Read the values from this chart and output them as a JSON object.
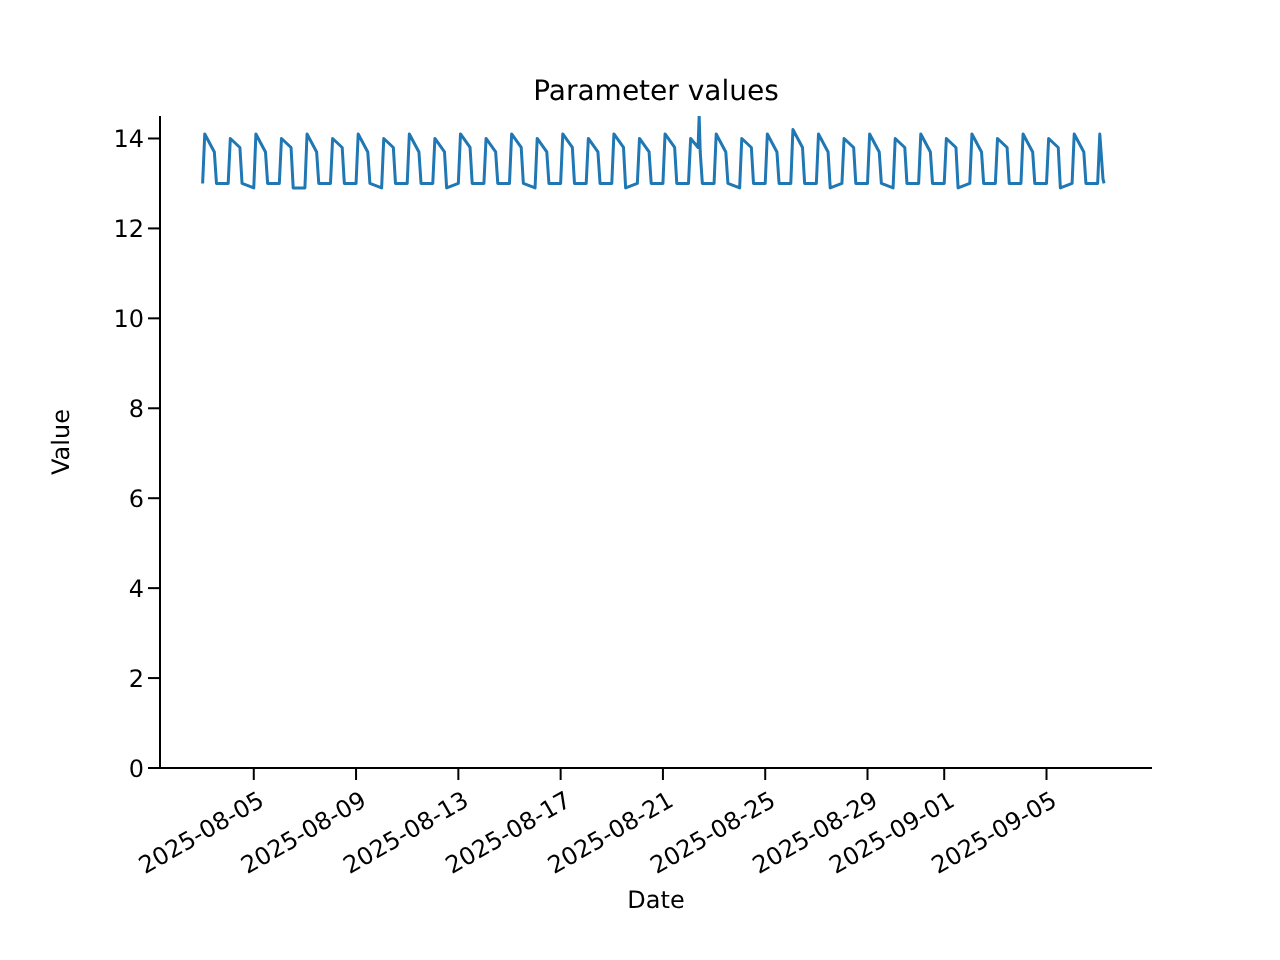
{
  "chart_data": {
    "type": "line",
    "title": "Parameter values",
    "xlabel": "Date",
    "ylabel": "Value",
    "x": [
      "2025-08-03T00:00",
      "2025-08-03T02:00",
      "2025-08-03T11:00",
      "2025-08-03T13:00",
      "2025-08-04T00:00",
      "2025-08-04T02:00",
      "2025-08-04T11:00",
      "2025-08-04T13:00",
      "2025-08-05T00:00",
      "2025-08-05T02:00",
      "2025-08-05T11:00",
      "2025-08-05T13:00",
      "2025-08-06T00:00",
      "2025-08-06T02:00",
      "2025-08-06T11:00",
      "2025-08-06T13:00",
      "2025-08-07T00:00",
      "2025-08-07T02:00",
      "2025-08-07T11:00",
      "2025-08-07T13:00",
      "2025-08-08T00:00",
      "2025-08-08T02:00",
      "2025-08-08T11:00",
      "2025-08-08T13:00",
      "2025-08-09T00:00",
      "2025-08-09T02:00",
      "2025-08-09T11:00",
      "2025-08-09T13:00",
      "2025-08-10T00:00",
      "2025-08-10T02:00",
      "2025-08-10T11:00",
      "2025-08-10T13:00",
      "2025-08-11T00:00",
      "2025-08-11T02:00",
      "2025-08-11T11:00",
      "2025-08-11T13:00",
      "2025-08-12T00:00",
      "2025-08-12T02:00",
      "2025-08-12T11:00",
      "2025-08-12T13:00",
      "2025-08-13T00:00",
      "2025-08-13T02:00",
      "2025-08-13T11:00",
      "2025-08-13T13:00",
      "2025-08-14T00:00",
      "2025-08-14T02:00",
      "2025-08-14T11:00",
      "2025-08-14T13:00",
      "2025-08-15T00:00",
      "2025-08-15T02:00",
      "2025-08-15T11:00",
      "2025-08-15T13:00",
      "2025-08-16T00:00",
      "2025-08-16T02:00",
      "2025-08-16T11:00",
      "2025-08-16T13:00",
      "2025-08-17T00:00",
      "2025-08-17T02:00",
      "2025-08-17T11:00",
      "2025-08-17T13:00",
      "2025-08-18T00:00",
      "2025-08-18T02:00",
      "2025-08-18T11:00",
      "2025-08-18T13:00",
      "2025-08-19T00:00",
      "2025-08-19T02:00",
      "2025-08-19T11:00",
      "2025-08-19T13:00",
      "2025-08-20T00:00",
      "2025-08-20T02:00",
      "2025-08-20T11:00",
      "2025-08-20T13:00",
      "2025-08-21T00:00",
      "2025-08-21T02:00",
      "2025-08-21T11:00",
      "2025-08-21T13:00",
      "2025-08-22T00:00",
      "2025-08-22T02:00",
      "2025-08-22T09:00",
      "2025-08-22T10:00",
      "2025-08-22T11:00",
      "2025-08-22T13:00",
      "2025-08-23T00:00",
      "2025-08-23T02:00",
      "2025-08-23T11:00",
      "2025-08-23T13:00",
      "2025-08-24T00:00",
      "2025-08-24T02:00",
      "2025-08-24T11:00",
      "2025-08-24T13:00",
      "2025-08-25T00:00",
      "2025-08-25T02:00",
      "2025-08-25T11:00",
      "2025-08-25T13:00",
      "2025-08-26T00:00",
      "2025-08-26T02:00",
      "2025-08-26T11:00",
      "2025-08-26T13:00",
      "2025-08-27T00:00",
      "2025-08-27T02:00",
      "2025-08-27T11:00",
      "2025-08-27T13:00",
      "2025-08-28T00:00",
      "2025-08-28T02:00",
      "2025-08-28T11:00",
      "2025-08-28T13:00",
      "2025-08-29T00:00",
      "2025-08-29T02:00",
      "2025-08-29T11:00",
      "2025-08-29T13:00",
      "2025-08-30T00:00",
      "2025-08-30T02:00",
      "2025-08-30T11:00",
      "2025-08-30T13:00",
      "2025-08-31T00:00",
      "2025-08-31T02:00",
      "2025-08-31T11:00",
      "2025-08-31T13:00",
      "2025-09-01T00:00",
      "2025-09-01T02:00",
      "2025-09-01T11:00",
      "2025-09-01T13:00",
      "2025-09-02T00:00",
      "2025-09-02T02:00",
      "2025-09-02T11:00",
      "2025-09-02T13:00",
      "2025-09-03T00:00",
      "2025-09-03T02:00",
      "2025-09-03T11:00",
      "2025-09-03T13:00",
      "2025-09-04T00:00",
      "2025-09-04T02:00",
      "2025-09-04T11:00",
      "2025-09-04T13:00",
      "2025-09-05T00:00",
      "2025-09-05T02:00",
      "2025-09-05T11:00",
      "2025-09-05T13:00",
      "2025-09-06T00:00",
      "2025-09-06T02:00",
      "2025-09-06T11:00",
      "2025-09-06T13:00",
      "2025-09-07T00:00",
      "2025-09-07T02:00",
      "2025-09-07T05:00",
      "2025-09-07T06:00"
    ],
    "series": [
      {
        "color": "#1f77b4",
        "values": [
          13.0,
          14.1,
          13.7,
          13.0,
          13.0,
          14.0,
          13.8,
          13.0,
          12.9,
          14.1,
          13.7,
          13.0,
          13.0,
          14.0,
          13.8,
          12.9,
          12.9,
          14.1,
          13.7,
          13.0,
          13.0,
          14.0,
          13.8,
          13.0,
          13.0,
          14.1,
          13.7,
          13.0,
          12.9,
          14.0,
          13.8,
          13.0,
          13.0,
          14.1,
          13.7,
          13.0,
          13.0,
          14.0,
          13.7,
          12.9,
          13.0,
          14.1,
          13.8,
          13.0,
          13.0,
          14.0,
          13.7,
          13.0,
          13.0,
          14.1,
          13.8,
          13.0,
          12.9,
          14.0,
          13.7,
          13.0,
          13.0,
          14.1,
          13.8,
          13.0,
          13.0,
          14.0,
          13.7,
          13.0,
          13.0,
          14.1,
          13.8,
          12.9,
          13.0,
          14.0,
          13.7,
          13.0,
          13.0,
          14.1,
          13.8,
          13.0,
          13.0,
          14.0,
          13.8,
          14.5,
          13.7,
          13.0,
          13.0,
          14.1,
          13.7,
          13.0,
          12.9,
          14.0,
          13.8,
          13.0,
          13.0,
          14.1,
          13.7,
          13.0,
          13.0,
          14.2,
          13.8,
          13.0,
          13.0,
          14.1,
          13.7,
          12.9,
          13.0,
          14.0,
          13.8,
          13.0,
          13.0,
          14.1,
          13.7,
          13.0,
          12.9,
          14.0,
          13.8,
          13.0,
          13.0,
          14.1,
          13.7,
          13.0,
          13.0,
          14.0,
          13.8,
          12.9,
          13.0,
          14.1,
          13.7,
          13.0,
          13.0,
          14.0,
          13.8,
          13.0,
          13.0,
          14.1,
          13.7,
          13.0,
          13.0,
          14.0,
          13.8,
          12.9,
          13.0,
          14.1,
          13.7,
          13.0,
          13.0,
          14.1,
          13.1,
          13.0
        ]
      }
    ],
    "xlim": [
      "2025-08-01T08:00",
      "2025-09-09T03:00"
    ],
    "xticks": [
      "2025-08-05",
      "2025-08-09",
      "2025-08-13",
      "2025-08-17",
      "2025-08-21",
      "2025-08-25",
      "2025-08-29",
      "2025-09-01",
      "2025-09-05"
    ],
    "ylim": [
      0,
      14.5
    ],
    "yticks": [
      0,
      2,
      4,
      6,
      8,
      10,
      12,
      14
    ]
  }
}
